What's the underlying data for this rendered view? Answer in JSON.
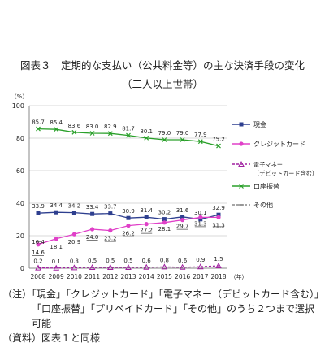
{
  "title": "図表３　定期的な支払い（公共料金等）の主な決済手段の変化",
  "subtitle": "（二人以上世帯）",
  "chart_data": {
    "type": "line",
    "ylabel": "（%）",
    "xlabel": "（年）",
    "ylim": [
      0,
      100
    ],
    "yticks": [
      0,
      20,
      40,
      60,
      80,
      100
    ],
    "x": [
      "2008",
      "2009",
      "2010",
      "2011",
      "2012",
      "2013",
      "2014",
      "2015",
      "2016",
      "2017",
      "2018"
    ],
    "legend_position": "right",
    "series": [
      {
        "name": "現金",
        "color": "#2e3f8f",
        "marker": "square",
        "values": [
          33.9,
          34.4,
          34.2,
          33.4,
          33.7,
          30.9,
          31.4,
          30.2,
          31.6,
          30.1,
          32.9
        ]
      },
      {
        "name": "クレジットカード",
        "color": "#e040c8",
        "marker": "circle",
        "values": [
          14.6,
          18.1,
          20.9,
          24.0,
          23.2,
          26.2,
          27.2,
          28.1,
          29.7,
          31.3,
          31.3
        ]
      },
      {
        "name": "電子マネー\n（デビットカード含む）",
        "color": "#a020a0",
        "marker": "triangle",
        "dash": true,
        "values": [
          0.2,
          0.1,
          0.3,
          0.5,
          0.5,
          0.5,
          0.6,
          0.8,
          0.6,
          0.9,
          1.5
        ]
      },
      {
        "name": "口座振替",
        "color": "#2aa02a",
        "marker": "x",
        "values": [
          85.7,
          85.4,
          83.6,
          83.0,
          82.9,
          81.7,
          80.1,
          79.0,
          79.0,
          77.9,
          75.2
        ]
      },
      {
        "name": "その他",
        "color": "#888888",
        "marker": "dash",
        "dash": true,
        "values": [
          16.4,
          null,
          null,
          null,
          null,
          null,
          null,
          null,
          null,
          null,
          null
        ]
      }
    ]
  },
  "notes": [
    "（注）「現金」「クレジットカード」「電子マネー（デビットカード含む）」「口座振替」「プリペイドカード」「その他」のうち２つまで選択可能",
    "（資料）図表１と同様"
  ]
}
